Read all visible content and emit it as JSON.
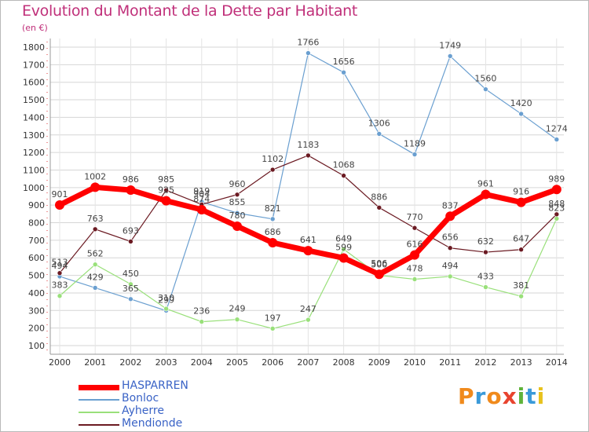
{
  "chart_data": {
    "type": "line",
    "title": "Evolution du Montant de la Dette par Habitant",
    "subtitle": "(en €)",
    "xlabel": "",
    "ylabel": "",
    "categories": [
      "2000",
      "2001",
      "2002",
      "2003",
      "2004",
      "2005",
      "2006",
      "2007",
      "2008",
      "2009",
      "2010",
      "2011",
      "2012",
      "2013",
      "2014"
    ],
    "ylim": [
      100,
      1800
    ],
    "yticks": [
      100,
      200,
      300,
      400,
      500,
      600,
      700,
      800,
      900,
      1000,
      1100,
      1200,
      1300,
      1400,
      1500,
      1600,
      1700,
      1800
    ],
    "grid": true,
    "legend_position": "bottom-left",
    "series": [
      {
        "name": "HASPARREN",
        "color": "#ff0000",
        "values": [
          901,
          1002,
          986,
          925,
          874,
          780,
          686,
          641,
          599,
          506,
          616,
          837,
          961,
          916,
          989
        ]
      },
      {
        "name": "Bonloc",
        "color": "#6a9fd0",
        "values": [
          494,
          429,
          365,
          299,
          919,
          855,
          821,
          1766,
          1656,
          1306,
          1189,
          1749,
          1560,
          1420,
          1274
        ]
      },
      {
        "name": "Ayherre",
        "color": "#99e07a",
        "values": [
          383,
          562,
          450,
          310,
          236,
          249,
          197,
          247,
          649,
          500,
          478,
          494,
          433,
          381,
          823
        ]
      },
      {
        "name": "Mendionde",
        "color": "#6b1a22",
        "values": [
          513,
          763,
          693,
          985,
          904,
          960,
          1102,
          1183,
          1068,
          886,
          770,
          656,
          632,
          647,
          848
        ]
      }
    ]
  },
  "logo": {
    "text": "Proxiti"
  }
}
